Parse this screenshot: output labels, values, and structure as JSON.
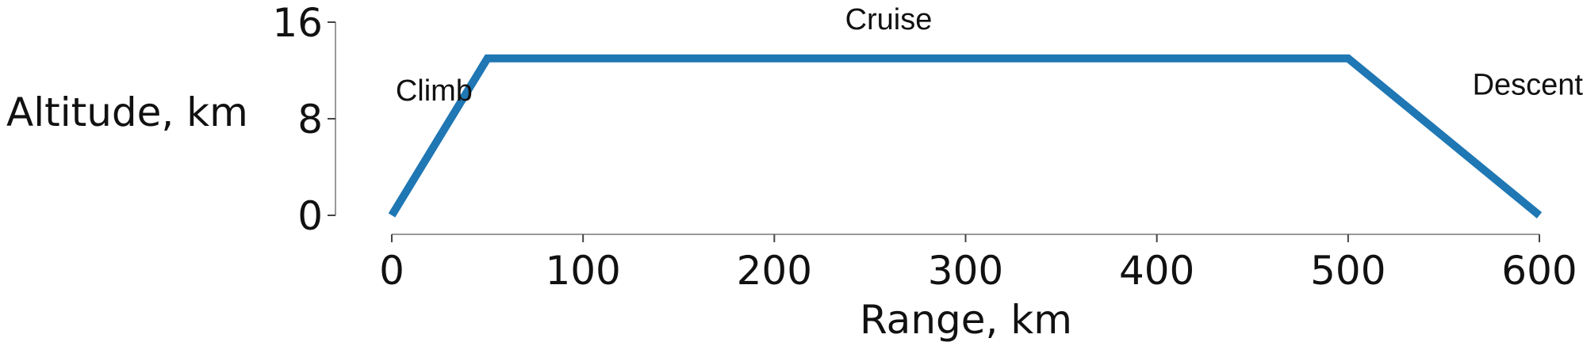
{
  "chart_data": {
    "type": "line",
    "title": "",
    "xlabel": "Range, km",
    "ylabel": "Altitude, km",
    "xlim": [
      0,
      600
    ],
    "ylim": [
      0,
      16
    ],
    "x_ticks": [
      "0",
      "100",
      "200",
      "300",
      "400",
      "500",
      "600"
    ],
    "y_ticks": [
      "0",
      "8",
      "16"
    ],
    "grid": false,
    "legend": "none",
    "color": "#1f77b4",
    "series": [
      {
        "x": [
          0,
          50,
          500,
          600
        ],
        "y": [
          0,
          13,
          13,
          0
        ]
      }
    ],
    "annotations": [
      {
        "text": "Climb",
        "x": 2,
        "y": 9.5
      },
      {
        "text": "Cruise",
        "x": 237,
        "y": 15.4
      },
      {
        "text": "Descent",
        "x": 565,
        "y": 10
      }
    ]
  }
}
